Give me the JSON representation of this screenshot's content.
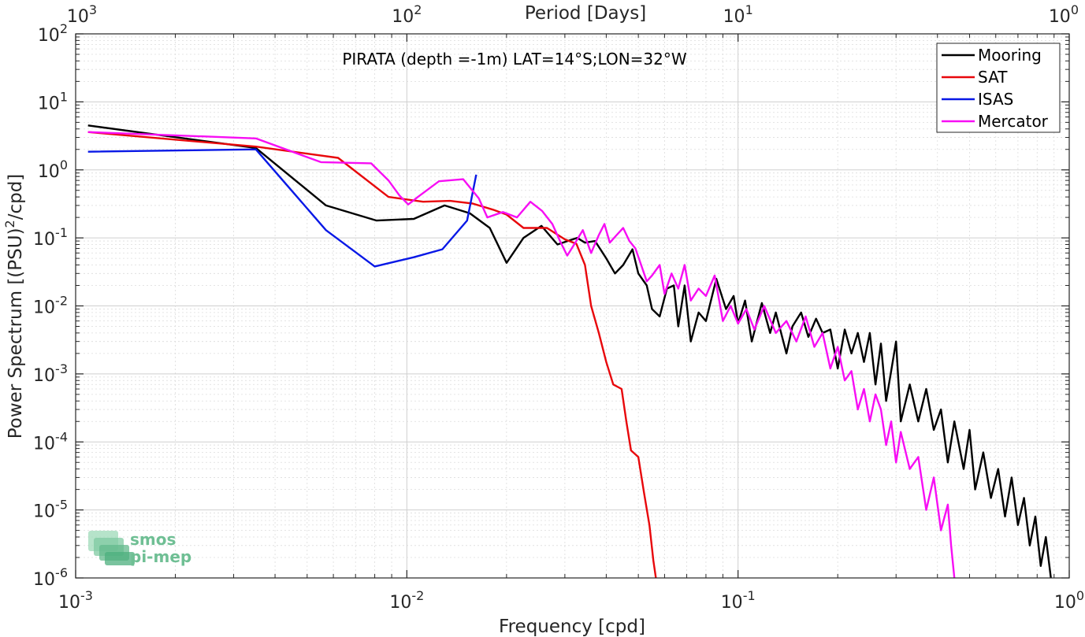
{
  "chart_data": {
    "type": "line",
    "title": "PIRATA (depth =-1m) LAT=14°S;LON=32°W",
    "xlabel": "Frequency [cpd]",
    "ylabel": "Power Spectrum [(PSU)",
    "ylabel_sup": "2",
    "ylabel_tail": "/cpd]",
    "top_xlabel": "Period [Days]",
    "xscale": "log",
    "yscale": "log",
    "xlim": [
      0.001,
      1
    ],
    "ylim": [
      1e-06,
      100
    ],
    "grid": true,
    "legend_position": "top-right",
    "x_ticks": [
      {
        "value": 0.001,
        "base": "10",
        "exp": "-3"
      },
      {
        "value": 0.01,
        "base": "10",
        "exp": "-2"
      },
      {
        "value": 0.1,
        "base": "10",
        "exp": "-1"
      },
      {
        "value": 1,
        "base": "10",
        "exp": "0"
      }
    ],
    "y_ticks": [
      {
        "value": 1e-06,
        "base": "10",
        "exp": "-6"
      },
      {
        "value": 1e-05,
        "base": "10",
        "exp": "-5"
      },
      {
        "value": 0.0001,
        "base": "10",
        "exp": "-4"
      },
      {
        "value": 0.001,
        "base": "10",
        "exp": "-3"
      },
      {
        "value": 0.01,
        "base": "10",
        "exp": "-2"
      },
      {
        "value": 0.1,
        "base": "10",
        "exp": "-1"
      },
      {
        "value": 1,
        "base": "10",
        "exp": "0"
      },
      {
        "value": 10,
        "base": "10",
        "exp": "1"
      },
      {
        "value": 100,
        "base": "10",
        "exp": "2"
      }
    ],
    "top_ticks": [
      {
        "value": 0.001,
        "base": "10",
        "exp": "3"
      },
      {
        "value": 0.01,
        "base": "10",
        "exp": "2"
      },
      {
        "value": 0.1,
        "base": "10",
        "exp": "1"
      },
      {
        "value": 1,
        "base": "10",
        "exp": "0"
      }
    ],
    "series": [
      {
        "name": "Mooring",
        "color": "#000000",
        "points": [
          [
            0.00109,
            4.5
          ],
          [
            0.0035,
            2.1
          ],
          [
            0.0057,
            0.3
          ],
          [
            0.0081,
            0.18
          ],
          [
            0.0105,
            0.19
          ],
          [
            0.013,
            0.3
          ],
          [
            0.0155,
            0.23
          ],
          [
            0.0178,
            0.14
          ],
          [
            0.02,
            0.043
          ],
          [
            0.0225,
            0.1
          ],
          [
            0.0255,
            0.15
          ],
          [
            0.0285,
            0.08
          ],
          [
            0.031,
            0.092
          ],
          [
            0.0327,
            0.1
          ],
          [
            0.0345,
            0.085
          ],
          [
            0.037,
            0.09
          ],
          [
            0.04,
            0.05
          ],
          [
            0.0425,
            0.03
          ],
          [
            0.045,
            0.04
          ],
          [
            0.048,
            0.068
          ],
          [
            0.05,
            0.03
          ],
          [
            0.053,
            0.02
          ],
          [
            0.055,
            0.009
          ],
          [
            0.058,
            0.007
          ],
          [
            0.061,
            0.018
          ],
          [
            0.064,
            0.02
          ],
          [
            0.066,
            0.005
          ],
          [
            0.069,
            0.02
          ],
          [
            0.072,
            0.003
          ],
          [
            0.076,
            0.008
          ],
          [
            0.08,
            0.006
          ],
          [
            0.086,
            0.025
          ],
          [
            0.092,
            0.009
          ],
          [
            0.097,
            0.014
          ],
          [
            0.1,
            0.0055
          ],
          [
            0.105,
            0.012
          ],
          [
            0.11,
            0.003
          ],
          [
            0.118,
            0.011
          ],
          [
            0.125,
            0.004
          ],
          [
            0.13,
            0.008
          ],
          [
            0.14,
            0.002
          ],
          [
            0.146,
            0.005
          ],
          [
            0.155,
            0.008
          ],
          [
            0.163,
            0.0035
          ],
          [
            0.172,
            0.0065
          ],
          [
            0.18,
            0.004
          ],
          [
            0.19,
            0.0045
          ],
          [
            0.2,
            0.0012
          ],
          [
            0.21,
            0.0045
          ],
          [
            0.22,
            0.002
          ],
          [
            0.23,
            0.004
          ],
          [
            0.24,
            0.0015
          ],
          [
            0.25,
            0.004
          ],
          [
            0.26,
            0.0007
          ],
          [
            0.27,
            0.0028
          ],
          [
            0.28,
            0.0004
          ],
          [
            0.29,
            0.0011
          ],
          [
            0.3,
            0.003
          ],
          [
            0.31,
            0.0002
          ],
          [
            0.33,
            0.0007
          ],
          [
            0.35,
            0.0002
          ],
          [
            0.37,
            0.0006
          ],
          [
            0.39,
            0.00015
          ],
          [
            0.41,
            0.0003
          ],
          [
            0.43,
            5e-05
          ],
          [
            0.45,
            0.0002
          ],
          [
            0.48,
            4e-05
          ],
          [
            0.5,
            0.00015
          ],
          [
            0.52,
            2e-05
          ],
          [
            0.55,
            7e-05
          ],
          [
            0.58,
            1.5e-05
          ],
          [
            0.61,
            4e-05
          ],
          [
            0.64,
            8e-06
          ],
          [
            0.67,
            3e-05
          ],
          [
            0.7,
            6e-06
          ],
          [
            0.73,
            1.5e-05
          ],
          [
            0.76,
            3e-06
          ],
          [
            0.79,
            8e-06
          ],
          [
            0.82,
            1.5e-06
          ],
          [
            0.85,
            4e-06
          ],
          [
            0.88,
            1e-06
          ]
        ]
      },
      {
        "name": "SAT",
        "color": "#e8070b",
        "points": [
          [
            0.00109,
            3.6
          ],
          [
            0.0035,
            2.2
          ],
          [
            0.0062,
            1.5
          ],
          [
            0.0088,
            0.4
          ],
          [
            0.0112,
            0.34
          ],
          [
            0.0135,
            0.35
          ],
          [
            0.0158,
            0.32
          ],
          [
            0.0182,
            0.26
          ],
          [
            0.02,
            0.22
          ],
          [
            0.0225,
            0.14
          ],
          [
            0.0265,
            0.14
          ],
          [
            0.03,
            0.095
          ],
          [
            0.0325,
            0.082
          ],
          [
            0.0345,
            0.04
          ],
          [
            0.036,
            0.01
          ],
          [
            0.038,
            0.004
          ],
          [
            0.04,
            0.0015
          ],
          [
            0.042,
            0.0007
          ],
          [
            0.0445,
            0.0006
          ],
          [
            0.046,
            0.0002
          ],
          [
            0.0475,
            7.5e-05
          ],
          [
            0.05,
            6e-05
          ],
          [
            0.052,
            1.8e-05
          ],
          [
            0.054,
            6e-06
          ],
          [
            0.0555,
            1.8e-06
          ],
          [
            0.0565,
            1e-06
          ]
        ]
      },
      {
        "name": "ISAS",
        "color": "#0818e6",
        "points": [
          [
            0.00109,
            1.85
          ],
          [
            0.0035,
            2.0
          ],
          [
            0.0057,
            0.13
          ],
          [
            0.008,
            0.038
          ],
          [
            0.0105,
            0.052
          ],
          [
            0.0128,
            0.068
          ],
          [
            0.0152,
            0.18
          ],
          [
            0.0162,
            0.85
          ]
        ]
      },
      {
        "name": "Mercator",
        "color": "#f70ef4",
        "points": [
          [
            0.00109,
            3.6
          ],
          [
            0.0035,
            2.9
          ],
          [
            0.0055,
            1.3
          ],
          [
            0.0078,
            1.25
          ],
          [
            0.0088,
            0.7
          ],
          [
            0.0095,
            0.42
          ],
          [
            0.0101,
            0.31
          ],
          [
            0.0108,
            0.4
          ],
          [
            0.0125,
            0.68
          ],
          [
            0.0148,
            0.73
          ],
          [
            0.0165,
            0.38
          ],
          [
            0.0175,
            0.2
          ],
          [
            0.0195,
            0.24
          ],
          [
            0.0215,
            0.2
          ],
          [
            0.0236,
            0.34
          ],
          [
            0.0256,
            0.25
          ],
          [
            0.0275,
            0.16
          ],
          [
            0.029,
            0.09
          ],
          [
            0.0305,
            0.055
          ],
          [
            0.032,
            0.08
          ],
          [
            0.034,
            0.13
          ],
          [
            0.036,
            0.06
          ],
          [
            0.038,
            0.11
          ],
          [
            0.0395,
            0.16
          ],
          [
            0.041,
            0.085
          ],
          [
            0.043,
            0.11
          ],
          [
            0.045,
            0.14
          ],
          [
            0.047,
            0.09
          ],
          [
            0.049,
            0.07
          ],
          [
            0.051,
            0.04
          ],
          [
            0.053,
            0.023
          ],
          [
            0.055,
            0.028
          ],
          [
            0.058,
            0.04
          ],
          [
            0.06,
            0.015
          ],
          [
            0.063,
            0.03
          ],
          [
            0.066,
            0.018
          ],
          [
            0.069,
            0.04
          ],
          [
            0.072,
            0.012
          ],
          [
            0.076,
            0.018
          ],
          [
            0.08,
            0.014
          ],
          [
            0.085,
            0.028
          ],
          [
            0.09,
            0.006
          ],
          [
            0.095,
            0.01
          ],
          [
            0.1,
            0.0055
          ],
          [
            0.106,
            0.009
          ],
          [
            0.112,
            0.0045
          ],
          [
            0.12,
            0.01
          ],
          [
            0.13,
            0.004
          ],
          [
            0.14,
            0.006
          ],
          [
            0.15,
            0.003
          ],
          [
            0.16,
            0.007
          ],
          [
            0.17,
            0.0025
          ],
          [
            0.18,
            0.004
          ],
          [
            0.19,
            0.0012
          ],
          [
            0.2,
            0.0025
          ],
          [
            0.21,
            0.0008
          ],
          [
            0.22,
            0.0011
          ],
          [
            0.23,
            0.0003
          ],
          [
            0.24,
            0.0006
          ],
          [
            0.25,
            0.0002
          ],
          [
            0.26,
            0.0005
          ],
          [
            0.27,
            0.0003
          ],
          [
            0.28,
            9e-05
          ],
          [
            0.29,
            0.0002
          ],
          [
            0.3,
            5e-05
          ],
          [
            0.31,
            0.00014
          ],
          [
            0.33,
            4e-05
          ],
          [
            0.35,
            6e-05
          ],
          [
            0.37,
            1e-05
          ],
          [
            0.39,
            3e-05
          ],
          [
            0.41,
            5e-06
          ],
          [
            0.43,
            1.2e-05
          ],
          [
            0.44,
            3e-06
          ],
          [
            0.45,
            1e-06
          ]
        ]
      }
    ]
  },
  "watermark": {
    "line1": "smos",
    "line2": "pi-mep",
    "color": "#4caf7d"
  }
}
